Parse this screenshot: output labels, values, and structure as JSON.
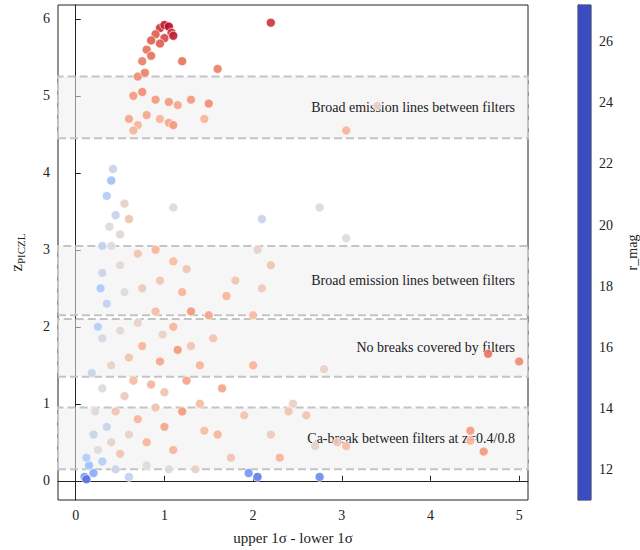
{
  "chart_data": {
    "type": "scatter",
    "xlabel": "upper 1σ - lower 1σ",
    "ylabel": {
      "text": "z",
      "subscript": "PICZL"
    },
    "xlim": [
      -0.2,
      5.1
    ],
    "xticks": [
      0,
      1,
      2,
      3,
      4,
      5
    ],
    "ylim": [
      -0.25,
      6.18
    ],
    "yticks": [
      0,
      1,
      2,
      3,
      4,
      5,
      6
    ],
    "grid": false,
    "colorbar": {
      "label": "r_mag",
      "lim": [
        11,
        27.2
      ],
      "ticks": [
        12,
        14,
        16,
        18,
        20,
        22,
        24,
        26
      ]
    },
    "annotations": [
      {
        "text": "Broad emission lines between filters",
        "y_range": [
          4.45,
          5.25
        ]
      },
      {
        "text": "Broad emission lines between filters",
        "y_range": [
          2.15,
          3.05
        ]
      },
      {
        "text": "No breaks covered by filters",
        "y_range": [
          1.35,
          2.1
        ]
      },
      {
        "text": "Ca-break between filters at z=0.4/0.8",
        "y_range": [
          0.15,
          0.95
        ]
      }
    ],
    "points": [
      {
        "x": 0.95,
        "y": 5.88,
        "r_mag": 26
      },
      {
        "x": 1.0,
        "y": 5.92,
        "r_mag": 26.5
      },
      {
        "x": 1.05,
        "y": 5.9,
        "r_mag": 27
      },
      {
        "x": 1.08,
        "y": 5.82,
        "r_mag": 26
      },
      {
        "x": 0.9,
        "y": 5.8,
        "r_mag": 25
      },
      {
        "x": 1.0,
        "y": 5.75,
        "r_mag": 25.5
      },
      {
        "x": 0.85,
        "y": 5.72,
        "r_mag": 25
      },
      {
        "x": 1.1,
        "y": 5.78,
        "r_mag": 26.5
      },
      {
        "x": 0.8,
        "y": 5.6,
        "r_mag": 24.5
      },
      {
        "x": 0.95,
        "y": 5.68,
        "r_mag": 25
      },
      {
        "x": 0.75,
        "y": 5.45,
        "r_mag": 24
      },
      {
        "x": 0.85,
        "y": 5.52,
        "r_mag": 24.5
      },
      {
        "x": 0.7,
        "y": 5.25,
        "r_mag": 23.5
      },
      {
        "x": 0.78,
        "y": 5.3,
        "r_mag": 24
      },
      {
        "x": 1.2,
        "y": 5.45,
        "r_mag": 24.5
      },
      {
        "x": 0.65,
        "y": 5.0,
        "r_mag": 23
      },
      {
        "x": 0.75,
        "y": 5.05,
        "r_mag": 23.5
      },
      {
        "x": 0.9,
        "y": 4.95,
        "r_mag": 23
      },
      {
        "x": 1.05,
        "y": 4.92,
        "r_mag": 23
      },
      {
        "x": 1.15,
        "y": 4.88,
        "r_mag": 22.5
      },
      {
        "x": 1.3,
        "y": 4.95,
        "r_mag": 23
      },
      {
        "x": 1.5,
        "y": 4.9,
        "r_mag": 23.5
      },
      {
        "x": 1.6,
        "y": 5.35,
        "r_mag": 24
      },
      {
        "x": 1.45,
        "y": 4.7,
        "r_mag": 22
      },
      {
        "x": 0.6,
        "y": 4.7,
        "r_mag": 22.5
      },
      {
        "x": 0.7,
        "y": 4.62,
        "r_mag": 22
      },
      {
        "x": 0.8,
        "y": 4.75,
        "r_mag": 22.5
      },
      {
        "x": 0.95,
        "y": 4.7,
        "r_mag": 22
      },
      {
        "x": 1.05,
        "y": 4.65,
        "r_mag": 22.5
      },
      {
        "x": 0.65,
        "y": 4.55,
        "r_mag": 22
      },
      {
        "x": 2.2,
        "y": 5.95,
        "r_mag": 26
      },
      {
        "x": 3.05,
        "y": 4.55,
        "r_mag": 22
      },
      {
        "x": 1.1,
        "y": 4.62,
        "r_mag": 23
      },
      {
        "x": 0.35,
        "y": 3.7,
        "r_mag": 17
      },
      {
        "x": 0.4,
        "y": 3.9,
        "r_mag": 16
      },
      {
        "x": 0.45,
        "y": 3.45,
        "r_mag": 18
      },
      {
        "x": 0.38,
        "y": 3.3,
        "r_mag": 19
      },
      {
        "x": 0.5,
        "y": 3.2,
        "r_mag": 19.5
      },
      {
        "x": 0.42,
        "y": 4.05,
        "r_mag": 18
      },
      {
        "x": 0.55,
        "y": 3.6,
        "r_mag": 20
      },
      {
        "x": 0.3,
        "y": 3.05,
        "r_mag": 17.5
      },
      {
        "x": 0.6,
        "y": 3.4,
        "r_mag": 21
      },
      {
        "x": 0.2,
        "y": 0.1,
        "r_mag": 15
      },
      {
        "x": 0.15,
        "y": 0.2,
        "r_mag": 16
      },
      {
        "x": 0.3,
        "y": 0.25,
        "r_mag": 17
      },
      {
        "x": 0.25,
        "y": 0.4,
        "r_mag": 19
      },
      {
        "x": 0.4,
        "y": 0.5,
        "r_mag": 20
      },
      {
        "x": 0.5,
        "y": 0.35,
        "r_mag": 21
      },
      {
        "x": 0.6,
        "y": 0.6,
        "r_mag": 20
      },
      {
        "x": 0.35,
        "y": 0.7,
        "r_mag": 18
      },
      {
        "x": 0.7,
        "y": 0.8,
        "r_mag": 22
      },
      {
        "x": 0.45,
        "y": 0.9,
        "r_mag": 21
      },
      {
        "x": 0.8,
        "y": 0.5,
        "r_mag": 22
      },
      {
        "x": 0.9,
        "y": 0.95,
        "r_mag": 21
      },
      {
        "x": 1.0,
        "y": 0.7,
        "r_mag": 22.5
      },
      {
        "x": 1.1,
        "y": 0.4,
        "r_mag": 22
      },
      {
        "x": 1.2,
        "y": 0.9,
        "r_mag": 23
      },
      {
        "x": 0.55,
        "y": 1.1,
        "r_mag": 20.5
      },
      {
        "x": 0.3,
        "y": 1.2,
        "r_mag": 19
      },
      {
        "x": 0.65,
        "y": 1.3,
        "r_mag": 21.5
      },
      {
        "x": 0.85,
        "y": 1.25,
        "r_mag": 22
      },
      {
        "x": 1.0,
        "y": 1.15,
        "r_mag": 21
      },
      {
        "x": 1.25,
        "y": 1.3,
        "r_mag": 22.5
      },
      {
        "x": 0.4,
        "y": 1.5,
        "r_mag": 20
      },
      {
        "x": 0.6,
        "y": 1.6,
        "r_mag": 21
      },
      {
        "x": 0.75,
        "y": 1.75,
        "r_mag": 22
      },
      {
        "x": 0.95,
        "y": 1.55,
        "r_mag": 22.5
      },
      {
        "x": 1.15,
        "y": 1.7,
        "r_mag": 23
      },
      {
        "x": 1.4,
        "y": 1.5,
        "r_mag": 22
      },
      {
        "x": 0.3,
        "y": 1.85,
        "r_mag": 18.5
      },
      {
        "x": 0.5,
        "y": 1.95,
        "r_mag": 19.5
      },
      {
        "x": 0.7,
        "y": 2.05,
        "r_mag": 20
      },
      {
        "x": 0.9,
        "y": 2.2,
        "r_mag": 21.5
      },
      {
        "x": 1.1,
        "y": 2.0,
        "r_mag": 22
      },
      {
        "x": 1.3,
        "y": 2.2,
        "r_mag": 23
      },
      {
        "x": 1.5,
        "y": 2.15,
        "r_mag": 22.5
      },
      {
        "x": 0.35,
        "y": 2.3,
        "r_mag": 17.5
      },
      {
        "x": 0.55,
        "y": 2.45,
        "r_mag": 19
      },
      {
        "x": 0.75,
        "y": 2.5,
        "r_mag": 20.5
      },
      {
        "x": 0.95,
        "y": 2.6,
        "r_mag": 21
      },
      {
        "x": 1.2,
        "y": 2.45,
        "r_mag": 22
      },
      {
        "x": 0.3,
        "y": 2.7,
        "r_mag": 18
      },
      {
        "x": 0.5,
        "y": 2.8,
        "r_mag": 19.5
      },
      {
        "x": 0.7,
        "y": 2.95,
        "r_mag": 21
      },
      {
        "x": 0.9,
        "y": 3.0,
        "r_mag": 22
      },
      {
        "x": 1.1,
        "y": 2.85,
        "r_mag": 21.5
      },
      {
        "x": 0.4,
        "y": 3.05,
        "r_mag": 19
      },
      {
        "x": 1.4,
        "y": 1.0,
        "r_mag": 21.5
      },
      {
        "x": 1.6,
        "y": 0.6,
        "r_mag": 22
      },
      {
        "x": 1.75,
        "y": 0.3,
        "r_mag": 21
      },
      {
        "x": 1.35,
        "y": 0.15,
        "r_mag": 20
      },
      {
        "x": 0.1,
        "y": 0.05,
        "r_mag": 14
      },
      {
        "x": 0.12,
        "y": 0.3,
        "r_mag": 17
      },
      {
        "x": 0.2,
        "y": 0.6,
        "r_mag": 18
      },
      {
        "x": 0.22,
        "y": 0.9,
        "r_mag": 19.5
      },
      {
        "x": 0.18,
        "y": 1.4,
        "r_mag": 18
      },
      {
        "x": 0.25,
        "y": 2.0,
        "r_mag": 17
      },
      {
        "x": 0.28,
        "y": 2.5,
        "r_mag": 16.5
      },
      {
        "x": 0.8,
        "y": 0.2,
        "r_mag": 19
      },
      {
        "x": 1.55,
        "y": 1.85,
        "r_mag": 21
      },
      {
        "x": 1.7,
        "y": 2.4,
        "r_mag": 22
      },
      {
        "x": 1.65,
        "y": 1.2,
        "r_mag": 22.5
      },
      {
        "x": 2.0,
        "y": 1.5,
        "r_mag": 22
      },
      {
        "x": 1.8,
        "y": 2.6,
        "r_mag": 21
      },
      {
        "x": 2.1,
        "y": 2.5,
        "r_mag": 20.5
      },
      {
        "x": 1.9,
        "y": 0.85,
        "r_mag": 21
      },
      {
        "x": 0.45,
        "y": 0.15,
        "r_mag": 18
      },
      {
        "x": 0.6,
        "y": 0.05,
        "r_mag": 17.5
      },
      {
        "x": 1.05,
        "y": 0.15,
        "r_mag": 19
      },
      {
        "x": 1.45,
        "y": 0.65,
        "r_mag": 21.5
      },
      {
        "x": 0.98,
        "y": 1.9,
        "r_mag": 20
      },
      {
        "x": 1.3,
        "y": 1.75,
        "r_mag": 21
      },
      {
        "x": 2.05,
        "y": 3.0,
        "r_mag": 20
      },
      {
        "x": 2.2,
        "y": 2.8,
        "r_mag": 21
      },
      {
        "x": 2.1,
        "y": 3.4,
        "r_mag": 18
      },
      {
        "x": 2.75,
        "y": 3.55,
        "r_mag": 19
      },
      {
        "x": 3.05,
        "y": 3.15,
        "r_mag": 19
      },
      {
        "x": 3.4,
        "y": 4.87,
        "r_mag": 20
      },
      {
        "x": 1.1,
        "y": 3.55,
        "r_mag": 19
      },
      {
        "x": 1.25,
        "y": 2.75,
        "r_mag": 21
      },
      {
        "x": 2.45,
        "y": 1.0,
        "r_mag": 20
      },
      {
        "x": 2.6,
        "y": 0.85,
        "r_mag": 21
      },
      {
        "x": 2.7,
        "y": 0.45,
        "r_mag": 20
      },
      {
        "x": 2.95,
        "y": 0.5,
        "r_mag": 21
      },
      {
        "x": 3.05,
        "y": 0.45,
        "r_mag": 21.5
      },
      {
        "x": 2.3,
        "y": 0.3,
        "r_mag": 22
      },
      {
        "x": 2.2,
        "y": 0.6,
        "r_mag": 20.5
      },
      {
        "x": 1.95,
        "y": 0.1,
        "r_mag": 14
      },
      {
        "x": 2.05,
        "y": 0.05,
        "r_mag": 13
      },
      {
        "x": 2.75,
        "y": 0.05,
        "r_mag": 13.5
      },
      {
        "x": 0.12,
        "y": 0.02,
        "r_mag": 12.5
      },
      {
        "x": 4.65,
        "y": 1.65,
        "r_mag": 24.5
      },
      {
        "x": 5.0,
        "y": 1.55,
        "r_mag": 23.5
      },
      {
        "x": 4.45,
        "y": 0.65,
        "r_mag": 23
      },
      {
        "x": 4.6,
        "y": 0.38,
        "r_mag": 23
      },
      {
        "x": 4.45,
        "y": 0.52,
        "r_mag": 22
      },
      {
        "x": 2.4,
        "y": 0.9,
        "r_mag": 21
      },
      {
        "x": 2.8,
        "y": 1.45,
        "r_mag": 20
      },
      {
        "x": 2.0,
        "y": 2.15,
        "r_mag": 21.5
      }
    ]
  }
}
